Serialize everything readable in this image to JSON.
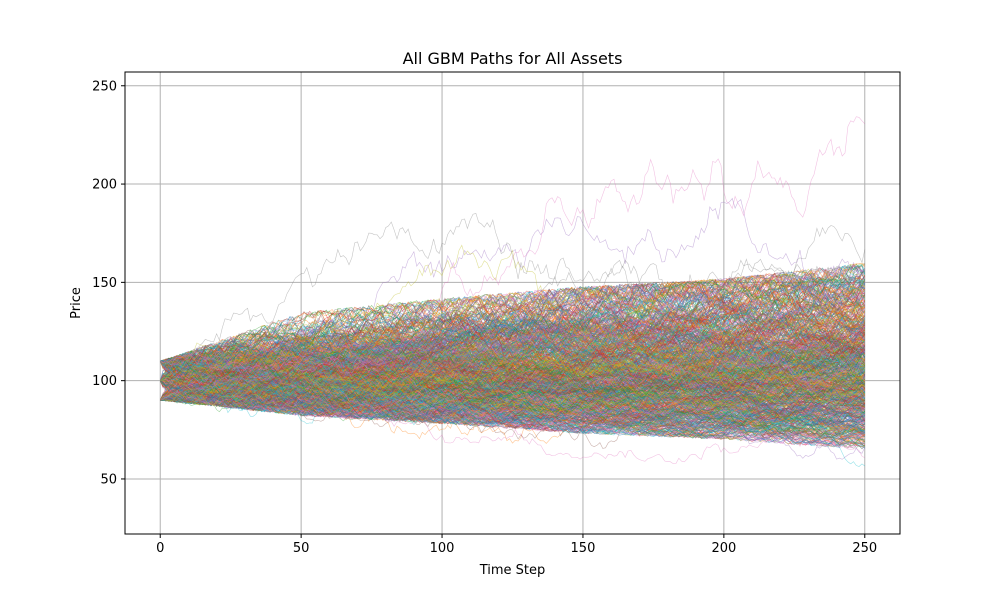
{
  "chart_data": {
    "type": "line",
    "title": "All GBM Paths for All Assets",
    "xlabel": "Time Step",
    "ylabel": "Price",
    "xlim": [
      -12.5,
      262.5
    ],
    "ylim": [
      22,
      257
    ],
    "xticks": [
      0,
      50,
      100,
      150,
      200,
      250
    ],
    "yticks": [
      50,
      100,
      150,
      200,
      250
    ],
    "grid": true,
    "steps": 250,
    "start_values": [
      90,
      100,
      110
    ],
    "series_colors": [
      "#1f77b4",
      "#ff7f0e",
      "#2ca02c",
      "#d62728",
      "#9467bd",
      "#8c564b",
      "#e377c2",
      "#7f7f7f",
      "#bcbd22",
      "#17becf"
    ],
    "envelope": {
      "x": [
        0,
        50,
        100,
        150,
        200,
        250
      ],
      "upper": [
        110,
        157,
        195,
        200,
        228,
        245
      ],
      "lower": [
        90,
        76,
        68,
        58,
        50,
        33
      ],
      "dense_upper": [
        110,
        135,
        142,
        148,
        152,
        160
      ],
      "dense_lower": [
        90,
        82,
        78,
        73,
        70,
        65
      ]
    }
  }
}
